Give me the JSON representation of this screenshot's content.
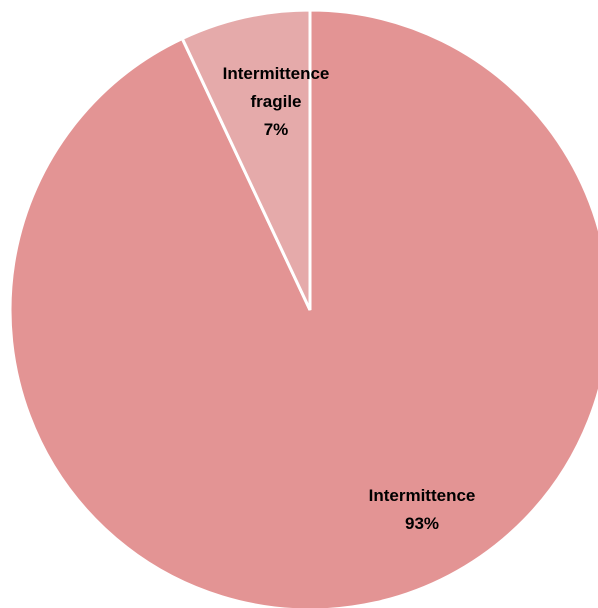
{
  "chart_data": {
    "type": "pie",
    "categories": [
      "Intermittence",
      "Intermittence fragile"
    ],
    "values": [
      93,
      7
    ],
    "value_labels": [
      "93%",
      "7%"
    ],
    "colors": [
      "#e39494",
      "#e5aaaa"
    ]
  }
}
